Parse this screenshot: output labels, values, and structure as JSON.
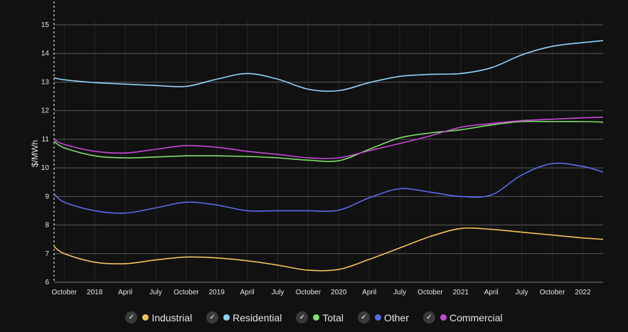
{
  "chart_data": {
    "type": "line",
    "title": "",
    "xlabel": "",
    "ylabel": "$/MWh",
    "ylim": [
      6,
      15
    ],
    "yticks": [
      6,
      7,
      8,
      9,
      10,
      11,
      12,
      13,
      14,
      15
    ],
    "grid": true,
    "legend_position": "bottom",
    "x_tick_labels": [
      "October",
      "2018",
      "April",
      "July",
      "October",
      "2019",
      "April",
      "July",
      "October",
      "2020",
      "April",
      "July",
      "October",
      "2021",
      "April",
      "July",
      "October",
      "2022"
    ],
    "x": [
      "2017-09",
      "2017-10",
      "2018-01",
      "2018-04",
      "2018-07",
      "2018-10",
      "2019-01",
      "2019-04",
      "2019-07",
      "2019-10",
      "2020-01",
      "2020-04",
      "2020-07",
      "2020-10",
      "2021-01",
      "2021-04",
      "2021-07",
      "2021-10",
      "2022-01",
      "2022-03"
    ],
    "series": [
      {
        "name": "Industrial",
        "color": "#f2c15b",
        "values": [
          7.25,
          7.0,
          6.7,
          6.65,
          6.78,
          6.88,
          6.85,
          6.75,
          6.6,
          6.42,
          6.45,
          6.8,
          7.2,
          7.6,
          7.88,
          7.85,
          7.75,
          7.65,
          7.55,
          7.5
        ]
      },
      {
        "name": "Residential",
        "color": "#8fd3f5",
        "values": [
          13.15,
          13.08,
          12.98,
          12.93,
          12.88,
          12.85,
          13.1,
          13.3,
          13.1,
          12.75,
          12.7,
          12.98,
          13.2,
          13.27,
          13.3,
          13.5,
          13.95,
          14.25,
          14.38,
          14.45
        ]
      },
      {
        "name": "Total",
        "color": "#7ee06a",
        "values": [
          10.93,
          10.7,
          10.42,
          10.35,
          10.38,
          10.42,
          10.42,
          10.4,
          10.35,
          10.27,
          10.25,
          10.65,
          11.05,
          11.22,
          11.33,
          11.5,
          11.62,
          11.62,
          11.62,
          11.6
        ]
      },
      {
        "name": "Other",
        "color": "#5a6be8",
        "values": [
          9.1,
          8.8,
          8.5,
          8.42,
          8.6,
          8.8,
          8.7,
          8.5,
          8.5,
          8.5,
          8.52,
          8.95,
          9.27,
          9.15,
          9.0,
          9.05,
          9.75,
          10.15,
          10.05,
          9.85
        ]
      },
      {
        "name": "Commercial",
        "color": "#c64ad6",
        "values": [
          11.0,
          10.82,
          10.58,
          10.52,
          10.65,
          10.78,
          10.72,
          10.58,
          10.47,
          10.35,
          10.35,
          10.6,
          10.85,
          11.12,
          11.42,
          11.55,
          11.65,
          11.7,
          11.75,
          11.77
        ]
      }
    ]
  },
  "legend": {
    "check_glyph": "✓",
    "items": [
      {
        "label": "Industrial",
        "color": "#f2c15b"
      },
      {
        "label": "Residential",
        "color": "#8fd3f5"
      },
      {
        "label": "Total",
        "color": "#7ee06a"
      },
      {
        "label": "Other",
        "color": "#5a6be8"
      },
      {
        "label": "Commercial",
        "color": "#c64ad6"
      }
    ]
  }
}
